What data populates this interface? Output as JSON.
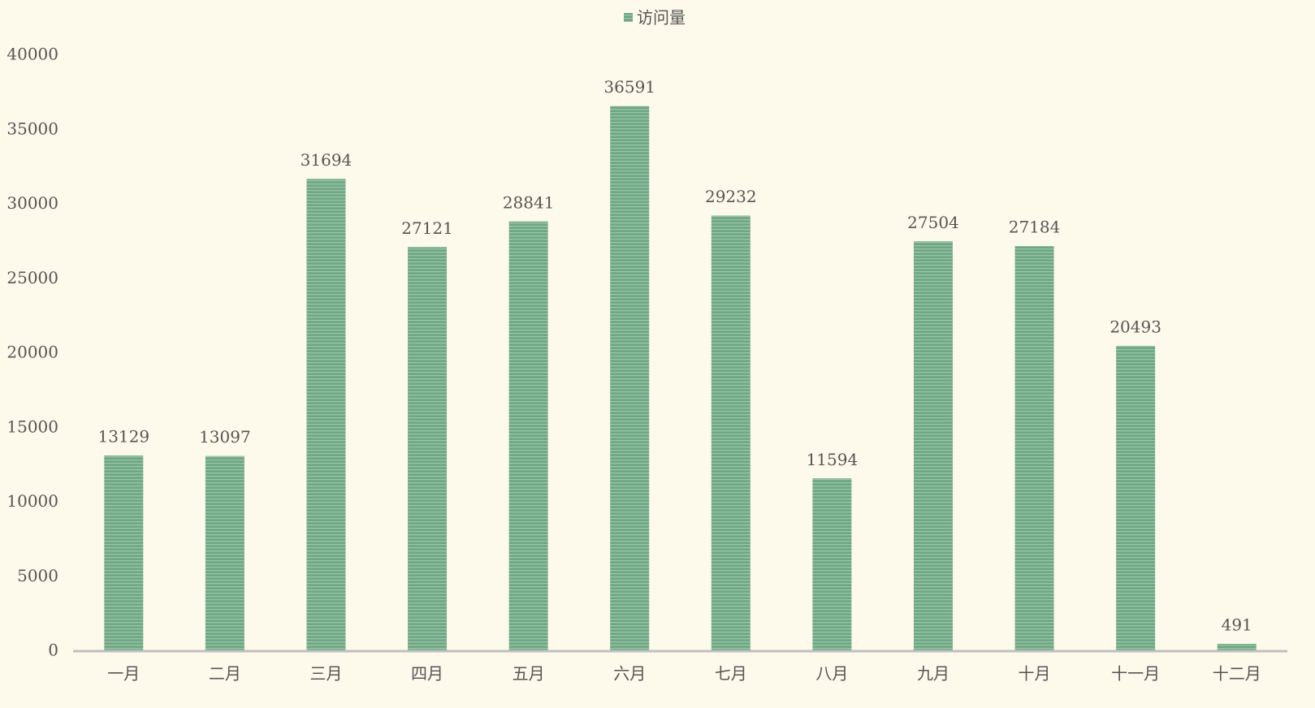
{
  "chart_data": {
    "type": "bar",
    "categories": [
      "一月",
      "二月",
      "三月",
      "四月",
      "五月",
      "六月",
      "七月",
      "八月",
      "九月",
      "十月",
      "十一月",
      "十二月"
    ],
    "series": [
      {
        "name": "访问量",
        "color": "#6ea883",
        "values": [
          13129,
          13097,
          31694,
          27121,
          28841,
          36591,
          29232,
          11594,
          27504,
          27184,
          20493,
          491
        ]
      }
    ],
    "ylim": [
      0,
      40000
    ],
    "yticks": [
      0,
      5000,
      10000,
      15000,
      20000,
      25000,
      30000,
      35000,
      40000
    ],
    "grid": false,
    "legend": "top"
  }
}
